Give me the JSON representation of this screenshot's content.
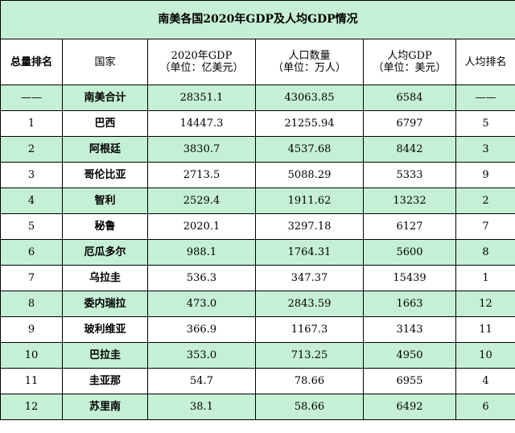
{
  "title": "南美各国2020年GDP及人均GDP情况",
  "headers": [
    {
      "line1": "总量排名",
      "line2": ""
    },
    {
      "line1": "国家",
      "line2": ""
    },
    {
      "line1": "2020年GDP",
      "line2": "（单位：亿美元）"
    },
    {
      "line1": "人口数量",
      "line2": "（单位：万人）"
    },
    {
      "line1": "人均GDP",
      "line2": "（单位：美元）"
    },
    {
      "line1": "人均排名",
      "line2": ""
    }
  ],
  "rows": [
    [
      "——",
      "南美合计",
      "28351.1",
      "43063.85",
      "6584",
      "——"
    ],
    [
      "1",
      "巴西",
      "14447.3",
      "21255.94",
      "6797",
      "5"
    ],
    [
      "2",
      "阿根廷",
      "3830.7",
      "4537.68",
      "8442",
      "3"
    ],
    [
      "3",
      "哥伦比亚",
      "2713.5",
      "5088.29",
      "5333",
      "9"
    ],
    [
      "4",
      "智利",
      "2529.4",
      "1911.62",
      "13232",
      "2"
    ],
    [
      "5",
      "秘鲁",
      "2020.1",
      "3297.18",
      "6127",
      "7"
    ],
    [
      "6",
      "厄瓜多尔",
      "988.1",
      "1764.31",
      "5600",
      "8"
    ],
    [
      "7",
      "乌拉圭",
      "536.3",
      "347.37",
      "15439",
      "1"
    ],
    [
      "8",
      "委内瑞拉",
      "473.0",
      "2843.59",
      "1663",
      "12"
    ],
    [
      "9",
      "玻利维亚",
      "366.9",
      "1167.3",
      "3143",
      "11"
    ],
    [
      "10",
      "巴拉圭",
      "353.0",
      "713.25",
      "4950",
      "10"
    ],
    [
      "11",
      "圭亚那",
      "54.7",
      "78.66",
      "6955",
      "4"
    ],
    [
      "12",
      "苏里南",
      "38.1",
      "58.66",
      "6492",
      "6"
    ]
  ],
  "colors": {
    "row_green": "#c5f0d5",
    "row_white": "#ffffff",
    "border": "#000000"
  }
}
